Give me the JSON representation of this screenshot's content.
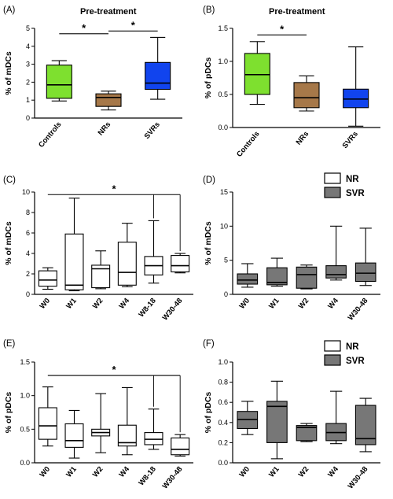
{
  "figure": {
    "panels": [
      {
        "id": "A",
        "label": "(A)",
        "title": "Pre-treatment"
      },
      {
        "id": "B",
        "label": "(B)",
        "title": "Pre-treatment"
      },
      {
        "id": "C",
        "label": "(C)",
        "title": ""
      },
      {
        "id": "D",
        "label": "(D)",
        "title": ""
      },
      {
        "id": "E",
        "label": "(E)",
        "title": ""
      },
      {
        "id": "F",
        "label": "(F)",
        "title": ""
      }
    ],
    "legend": {
      "nr_label": "NR",
      "svr_label": "SVR"
    },
    "colors": {
      "controls": "#7ee02f",
      "nrs": "#a67849",
      "svrs": "#1144ee",
      "nr": "#ffffff",
      "svr": "#777777"
    }
  },
  "chart_data": [
    {
      "id": "A",
      "type": "box",
      "title": "Pre-treatment",
      "ylabel": "% of mDCs",
      "xlabel": "",
      "ylim": [
        0,
        5
      ],
      "yticks": [
        "0",
        "1",
        "2",
        "3",
        "4",
        "5"
      ],
      "rotate_labels": true,
      "categories": [
        "Controls",
        "NRs",
        "SVRs"
      ],
      "boxes": [
        {
          "min": 0.95,
          "q1": 1.1,
          "median": 1.85,
          "q3": 2.95,
          "max": 3.2,
          "color": "#7ee02f"
        },
        {
          "min": 0.45,
          "q1": 0.65,
          "median": 1.15,
          "q3": 1.35,
          "max": 1.5,
          "color": "#a67849"
        },
        {
          "min": 1.05,
          "q1": 1.6,
          "median": 1.95,
          "q3": 3.1,
          "max": 4.5,
          "color": "#1144ee"
        }
      ],
      "significance": [
        {
          "from": 0,
          "to": 1,
          "y": 4.7,
          "label": "*"
        },
        {
          "from": 1,
          "to": 2,
          "y": 4.85,
          "label": "*"
        }
      ]
    },
    {
      "id": "B",
      "type": "box",
      "title": "Pre-treatment",
      "ylabel": "% of pDCs",
      "xlabel": "",
      "ylim": [
        0,
        1.5
      ],
      "yticks": [
        "0.0",
        "0.5",
        "1.0",
        "1.5"
      ],
      "rotate_labels": true,
      "categories": [
        "Controls",
        "NRs",
        "SVRs"
      ],
      "boxes": [
        {
          "min": 0.35,
          "q1": 0.5,
          "median": 0.8,
          "q3": 1.12,
          "max": 1.3,
          "color": "#7ee02f"
        },
        {
          "min": 0.25,
          "q1": 0.3,
          "median": 0.45,
          "q3": 0.68,
          "max": 0.78,
          "color": "#a67849"
        },
        {
          "min": 0.02,
          "q1": 0.3,
          "median": 0.43,
          "q3": 0.58,
          "max": 1.22,
          "color": "#1144ee"
        }
      ],
      "significance": [
        {
          "from": 0,
          "to": 1,
          "y": 1.4,
          "label": "*"
        }
      ]
    },
    {
      "id": "C",
      "type": "box",
      "title": "",
      "ylabel": "% of mDCs",
      "xlabel": "",
      "ylim": [
        0,
        10
      ],
      "yticks": [
        "0",
        "2",
        "4",
        "6",
        "8",
        "10"
      ],
      "rotate_labels": true,
      "categories": [
        "W0",
        "W1",
        "W2",
        "W4",
        "W8-18",
        "W30-48"
      ],
      "boxes": [
        {
          "min": 0.5,
          "q1": 0.8,
          "median": 1.4,
          "q3": 2.3,
          "max": 2.6,
          "color": "#ffffff"
        },
        {
          "min": 0.35,
          "q1": 0.45,
          "median": 0.9,
          "q3": 5.9,
          "max": 9.4,
          "color": "#ffffff"
        },
        {
          "min": 0.55,
          "q1": 0.65,
          "median": 2.5,
          "q3": 2.85,
          "max": 4.25,
          "color": "#ffffff"
        },
        {
          "min": 0.75,
          "q1": 0.9,
          "median": 2.15,
          "q3": 5.1,
          "max": 6.95,
          "color": "#ffffff"
        },
        {
          "min": 1.1,
          "q1": 1.9,
          "median": 2.8,
          "q3": 3.7,
          "max": 7.2,
          "color": "#ffffff"
        },
        {
          "min": 2.1,
          "q1": 2.2,
          "median": 2.8,
          "q3": 3.8,
          "max": 4.0,
          "color": "#ffffff"
        }
      ],
      "significance": [
        {
          "from": 0,
          "to": 5,
          "y": 9.75,
          "drop_to": [
            4,
            5
          ],
          "label": "*"
        }
      ]
    },
    {
      "id": "D",
      "type": "box",
      "title": "",
      "ylabel": "% of mDCs",
      "xlabel": "",
      "ylim": [
        0,
        15
      ],
      "yticks": [
        "0",
        "5",
        "10",
        "15"
      ],
      "rotate_labels": true,
      "categories": [
        "W0",
        "W1",
        "W2",
        "W4",
        "W30-48"
      ],
      "legend": [
        "NR",
        "SVR"
      ],
      "boxes": [
        {
          "min": 1.05,
          "q1": 1.5,
          "median": 2.1,
          "q3": 3.0,
          "max": 4.5,
          "color": "#777777"
        },
        {
          "min": 1.2,
          "q1": 1.4,
          "median": 1.75,
          "q3": 3.9,
          "max": 5.3,
          "color": "#777777"
        },
        {
          "min": 0.8,
          "q1": 0.9,
          "median": 2.9,
          "q3": 4.0,
          "max": 4.3,
          "color": "#777777"
        },
        {
          "min": 2.1,
          "q1": 2.4,
          "median": 2.9,
          "q3": 4.2,
          "max": 10.0,
          "color": "#777777"
        },
        {
          "min": 1.3,
          "q1": 1.9,
          "median": 3.1,
          "q3": 4.6,
          "max": 9.7,
          "color": "#777777"
        }
      ],
      "significance": []
    },
    {
      "id": "E",
      "type": "box",
      "title": "",
      "ylabel": "% of pDCs",
      "xlabel": "",
      "ylim": [
        0,
        1.5
      ],
      "yticks": [
        "0.0",
        "0.5",
        "1.0",
        "1.5"
      ],
      "rotate_labels": true,
      "categories": [
        "W0",
        "W1",
        "W2",
        "W4",
        "W8-18",
        "W30-48"
      ],
      "boxes": [
        {
          "min": 0.25,
          "q1": 0.35,
          "median": 0.55,
          "q3": 0.82,
          "max": 1.13,
          "color": "#ffffff"
        },
        {
          "min": 0.07,
          "q1": 0.23,
          "median": 0.33,
          "q3": 0.58,
          "max": 0.78,
          "color": "#ffffff"
        },
        {
          "min": 0.15,
          "q1": 0.4,
          "median": 0.45,
          "q3": 0.5,
          "max": 1.03,
          "color": "#ffffff"
        },
        {
          "min": 0.12,
          "q1": 0.25,
          "median": 0.3,
          "q3": 0.56,
          "max": 1.12,
          "color": "#ffffff"
        },
        {
          "min": 0.2,
          "q1": 0.27,
          "median": 0.35,
          "q3": 0.45,
          "max": 0.8,
          "color": "#ffffff"
        },
        {
          "min": 0.1,
          "q1": 0.12,
          "median": 0.2,
          "q3": 0.37,
          "max": 0.42,
          "color": "#ffffff"
        }
      ],
      "significance": [
        {
          "from": 0,
          "to": 5,
          "y": 1.3,
          "drop_to": [
            4,
            5
          ],
          "label": "*"
        }
      ]
    },
    {
      "id": "F",
      "type": "box",
      "title": "",
      "ylabel": "% of pDCs",
      "xlabel": "",
      "ylim": [
        0,
        1.0
      ],
      "yticks": [
        "0.0",
        "0.2",
        "0.4",
        "0.6",
        "0.8",
        "1.0"
      ],
      "rotate_labels": true,
      "categories": [
        "W0",
        "W1",
        "W2",
        "W4",
        "W30-48"
      ],
      "legend": [
        "NR",
        "SVR"
      ],
      "boxes": [
        {
          "min": 0.28,
          "q1": 0.34,
          "median": 0.43,
          "q3": 0.51,
          "max": 0.61,
          "color": "#777777"
        },
        {
          "min": 0.04,
          "q1": 0.2,
          "median": 0.56,
          "q3": 0.61,
          "max": 0.81,
          "color": "#777777"
        },
        {
          "min": 0.21,
          "q1": 0.22,
          "median": 0.35,
          "q3": 0.37,
          "max": 0.39,
          "color": "#777777"
        },
        {
          "min": 0.19,
          "q1": 0.22,
          "median": 0.3,
          "q3": 0.39,
          "max": 0.71,
          "color": "#777777"
        },
        {
          "min": 0.11,
          "q1": 0.18,
          "median": 0.24,
          "q3": 0.57,
          "max": 0.64,
          "color": "#777777"
        }
      ],
      "significance": []
    }
  ]
}
